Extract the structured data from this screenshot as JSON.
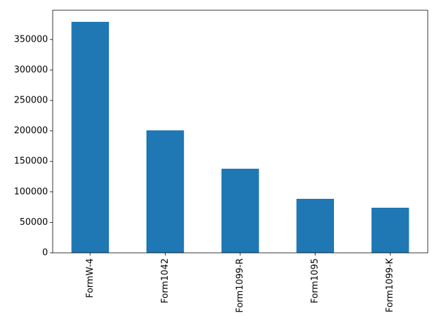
{
  "chart_data": {
    "type": "bar",
    "categories": [
      "FormW-4",
      "Form1042",
      "Form1099-R",
      "Form1095",
      "Form1099-K"
    ],
    "values": [
      379000,
      201000,
      138000,
      88600,
      74000
    ],
    "color": "#1f77b4",
    "ylim": [
      0,
      398000
    ],
    "yticks": [
      0,
      50000,
      100000,
      150000,
      200000,
      250000,
      300000,
      350000
    ]
  }
}
